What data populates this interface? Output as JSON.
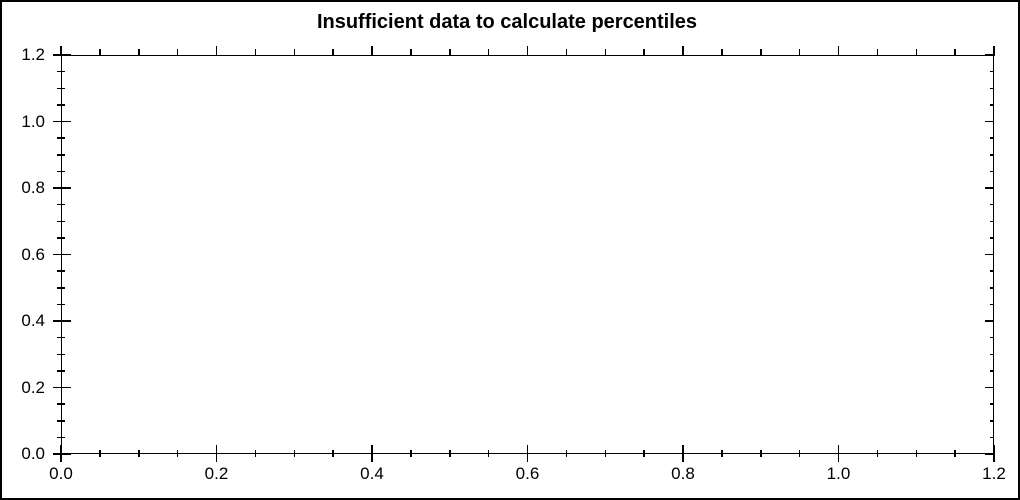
{
  "figure": {
    "title": "Insufficient data to calculate percentiles",
    "background_color": "#ffffff",
    "axis_color": "#000000",
    "text_color": "#000000"
  },
  "chart_data": {
    "type": "scatter",
    "title": "Insufficient data to calculate percentiles",
    "series": [],
    "xlabel": "",
    "ylabel": "",
    "xlim": [
      0.0,
      1.2
    ],
    "ylim": [
      0.0,
      1.2
    ],
    "grid": false,
    "frame": true,
    "legend": null,
    "x_ticks": {
      "major": [
        0.0,
        0.2,
        0.4,
        0.6,
        0.8,
        1.0,
        1.2
      ],
      "labels": [
        "0.0",
        "0.2",
        "0.4",
        "0.6",
        "0.8",
        "1.0",
        "1.2"
      ],
      "minor_step": 0.05
    },
    "y_ticks": {
      "major": [
        0.0,
        0.2,
        0.4,
        0.6,
        0.8,
        1.0,
        1.2
      ],
      "labels": [
        "0.0",
        "0.2",
        "0.4",
        "0.6",
        "0.8",
        "1.0",
        "1.2"
      ],
      "minor_step": 0.05
    }
  }
}
